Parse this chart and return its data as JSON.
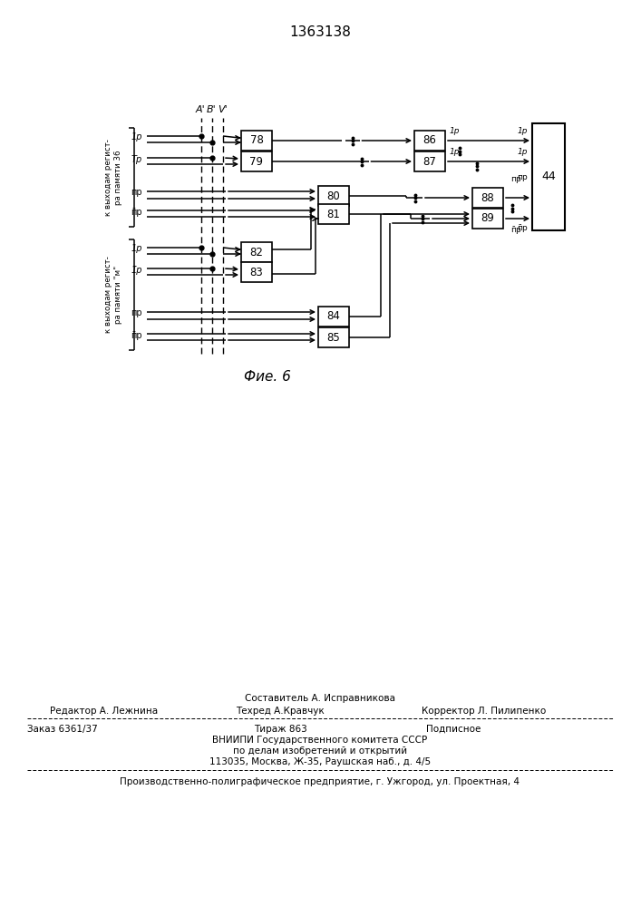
{
  "title": "1363138",
  "fig_label": "Фие. 6",
  "background_color": "#ffffff",
  "line_color": "#000000",
  "box_color": "#ffffff",
  "text_color": "#000000",
  "footer_line0_center": "Составитель А. Исправникова",
  "footer_line1_left": "Редактор А. Лежнина",
  "footer_line1_center": "Техред А.Кравчук",
  "footer_line1_right": "Корректор Л. Пилипенко",
  "footer_line2_left": "Заказ 6361/37",
  "footer_line2_center": "Тираж 863",
  "footer_line2_right": "Подписное",
  "footer_line3": "ВНИИПИ Государственного комитета СССР",
  "footer_line4": "по делам изобретений и открытий",
  "footer_line5": "113035, Москва, Ж-35, Раушская наб., д. 4/5",
  "footer_line6": "Производственно-полиграфическое предприятие, г. Ужгород, ул. Проектная, 4"
}
